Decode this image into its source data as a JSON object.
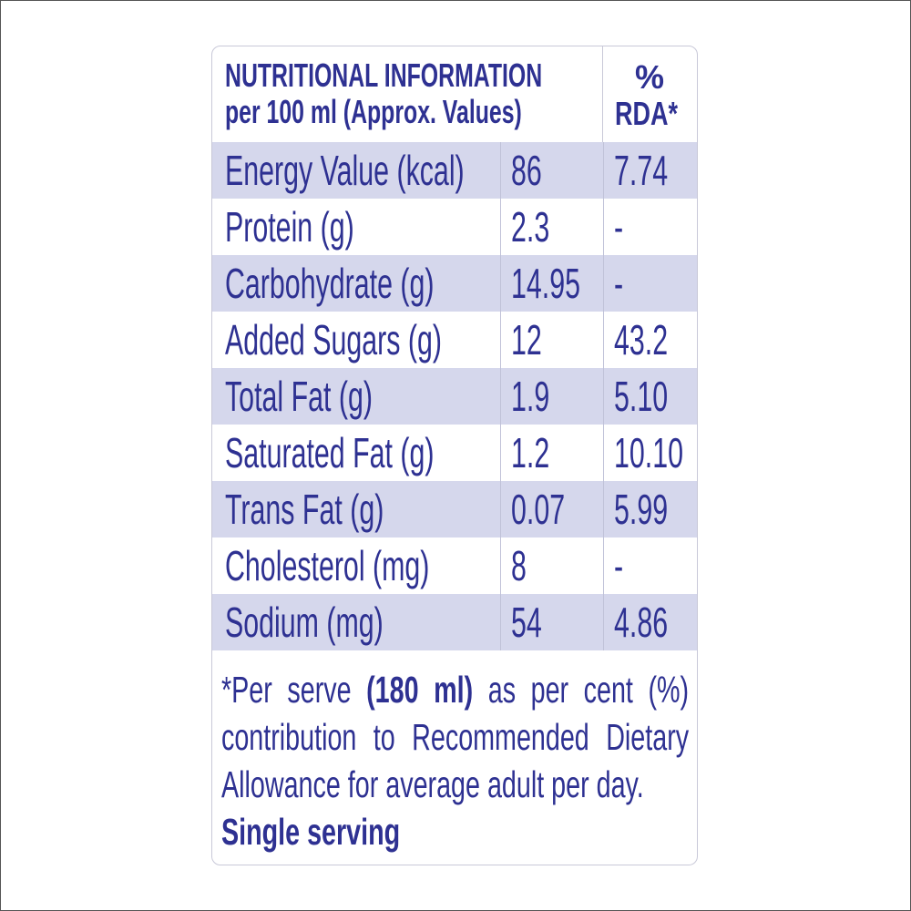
{
  "header": {
    "title": [
      "NUTRITIONAL INFORMATION",
      "per 100 ml (Approx. Values)"
    ],
    "rda": [
      "%",
      "RDA*"
    ]
  },
  "table": {
    "rows": [
      [
        "Energy Value (kcal)",
        "86",
        "7.74"
      ],
      [
        "Protein (g)",
        "2.3",
        "-"
      ],
      [
        "Carbohydrate (g)",
        "14.95",
        "-"
      ],
      [
        "Added Sugars (g)",
        "12",
        "43.2"
      ],
      [
        "Total Fat (g)",
        "1.9",
        "5.10"
      ],
      [
        "Saturated Fat (g)",
        "1.2",
        "10.10"
      ],
      [
        "Trans Fat (g)",
        "0.07",
        "5.99"
      ],
      [
        "Cholesterol (mg)",
        "8",
        "-"
      ],
      [
        "Sodium (mg)",
        "54",
        "4.86"
      ]
    ]
  },
  "footnote": {
    "parts": [
      "*Per serve ",
      "(180 ml)",
      " as per cent (%) contribution to Recommended Dietary Allowance for average adult per day.",
      "Single serving"
    ]
  }
}
